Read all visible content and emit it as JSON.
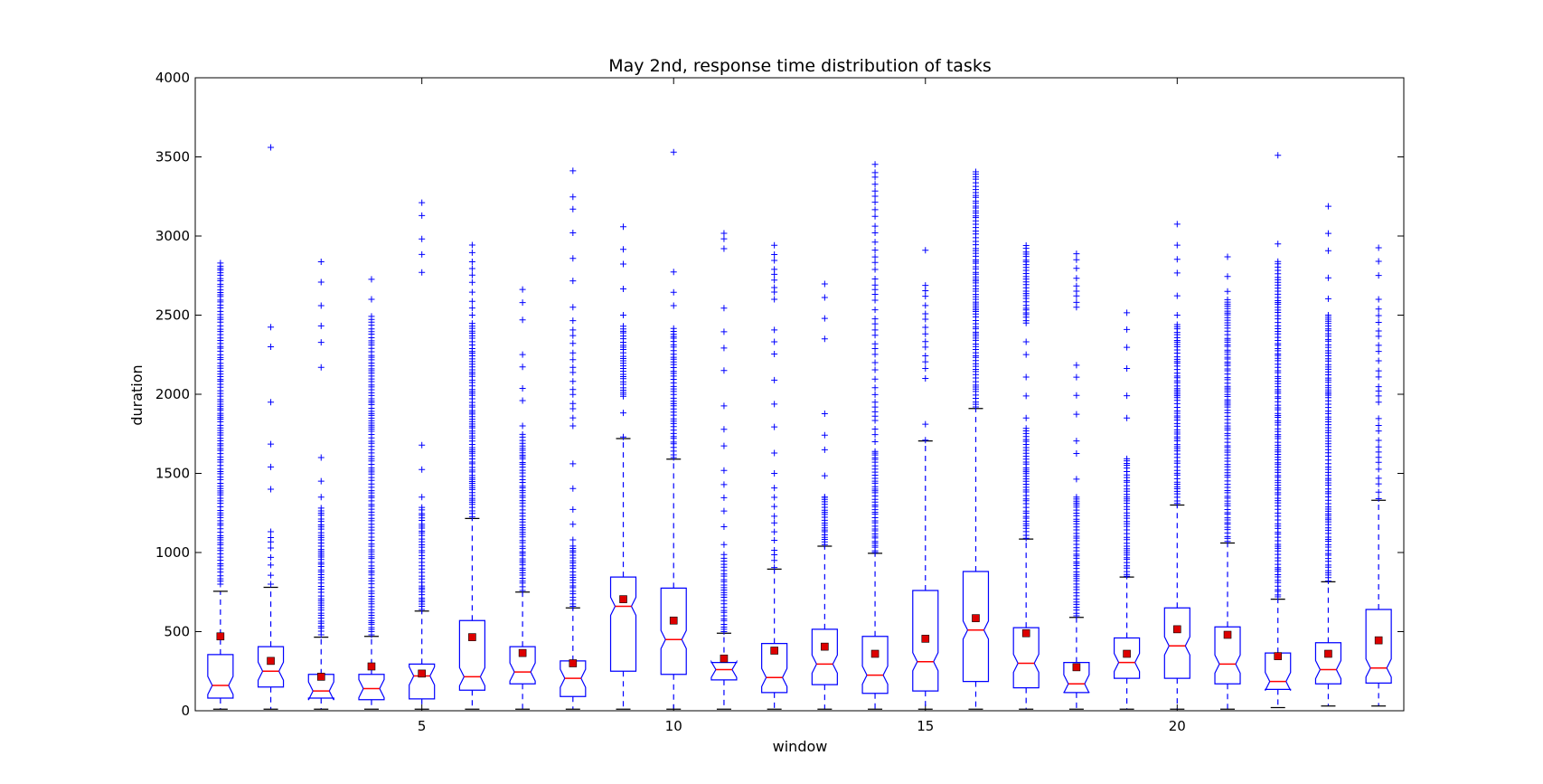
{
  "chart_data": {
    "type": "box",
    "title": "May 2nd, response time distribution of tasks",
    "xlabel": "window",
    "ylabel": "duration",
    "xlim": [
      0.5,
      24.5
    ],
    "ylim": [
      0,
      4000
    ],
    "x_ticks": [
      5,
      10,
      15,
      20
    ],
    "y_ticks": [
      0,
      500,
      1000,
      1500,
      2000,
      2500,
      3000,
      3500,
      4000
    ],
    "grid": false,
    "legend": "none",
    "colors": {
      "box": "#0000ff",
      "median": "#ff0000",
      "mean_marker": "#dd0000",
      "outlier": "#0000ff",
      "cap": "#000000"
    },
    "boxes": [
      {
        "x": 1,
        "whislo": 10,
        "q1": 80,
        "med": 160,
        "q3": 355,
        "whishi": 755,
        "mean": 470,
        "fliers": [
          [
            800,
            2850,
            "dense"
          ]
        ]
      },
      {
        "x": 2,
        "whislo": 10,
        "q1": 150,
        "med": 250,
        "q3": 405,
        "whishi": 780,
        "mean": 315,
        "fliers": [
          [
            800,
            1150,
            "medium"
          ],
          [
            1400,
            1750,
            "sparse"
          ],
          [
            1950,
            1950,
            "point"
          ],
          [
            2300,
            2550,
            "sparse"
          ],
          [
            3560,
            3560,
            "point"
          ]
        ]
      },
      {
        "x": 3,
        "whislo": 10,
        "q1": 80,
        "med": 125,
        "q3": 230,
        "whishi": 465,
        "mean": 215,
        "fliers": [
          [
            480,
            1300,
            "dense"
          ],
          [
            1350,
            1700,
            "sparse"
          ],
          [
            2170,
            2900,
            "sparse"
          ]
        ]
      },
      {
        "x": 4,
        "whislo": 10,
        "q1": 70,
        "med": 140,
        "q3": 230,
        "whishi": 470,
        "mean": 280,
        "fliers": [
          [
            480,
            2500,
            "dense"
          ],
          [
            2600,
            2850,
            "sparse"
          ]
        ]
      },
      {
        "x": 5,
        "whislo": 10,
        "q1": 75,
        "med": 220,
        "q3": 295,
        "whishi": 630,
        "mean": 235,
        "fliers": [
          [
            640,
            1300,
            "dense"
          ],
          [
            1350,
            1800,
            "sparse"
          ],
          [
            2770,
            3250,
            "sparse"
          ]
        ]
      },
      {
        "x": 6,
        "whislo": 10,
        "q1": 130,
        "med": 215,
        "q3": 570,
        "whishi": 1215,
        "mean": 465,
        "fliers": [
          [
            1225,
            2450,
            "dense"
          ],
          [
            2500,
            3000,
            "medium"
          ]
        ]
      },
      {
        "x": 7,
        "whislo": 10,
        "q1": 170,
        "med": 245,
        "q3": 405,
        "whishi": 750,
        "mean": 365,
        "fliers": [
          [
            760,
            1750,
            "dense"
          ],
          [
            1800,
            2300,
            "sparse"
          ],
          [
            2470,
            2690,
            "sparse"
          ]
        ]
      },
      {
        "x": 8,
        "whislo": 10,
        "q1": 90,
        "med": 205,
        "q3": 315,
        "whishi": 650,
        "mean": 300,
        "fliers": [
          [
            660,
            1050,
            "dense"
          ],
          [
            1080,
            1600,
            "sparse"
          ],
          [
            1800,
            2500,
            "medium"
          ],
          [
            2550,
            3580,
            "sparse"
          ]
        ]
      },
      {
        "x": 9,
        "whislo": 10,
        "q1": 250,
        "med": 660,
        "q3": 845,
        "whishi": 1720,
        "mean": 705,
        "fliers": [
          [
            1730,
            2000,
            "sparse"
          ],
          [
            2000,
            2450,
            "dense"
          ],
          [
            2500,
            3060,
            "sparse"
          ]
        ]
      },
      {
        "x": 10,
        "whislo": 10,
        "q1": 230,
        "med": 450,
        "q3": 775,
        "whishi": 1590,
        "mean": 570,
        "fliers": [
          [
            1600,
            2430,
            "dense"
          ],
          [
            2560,
            2860,
            "sparse"
          ],
          [
            3530,
            3530,
            "point"
          ]
        ]
      },
      {
        "x": 11,
        "whislo": 10,
        "q1": 195,
        "med": 260,
        "q3": 305,
        "whishi": 490,
        "mean": 330,
        "fliers": [
          [
            500,
            1000,
            "dense"
          ],
          [
            1050,
            2000,
            "sparse"
          ],
          [
            2150,
            2550,
            "sparse"
          ],
          [
            2920,
            3060,
            "medium"
          ]
        ]
      },
      {
        "x": 12,
        "whislo": 10,
        "q1": 115,
        "med": 210,
        "q3": 425,
        "whishi": 895,
        "mean": 380,
        "fliers": [
          [
            905,
            1450,
            "medium"
          ],
          [
            1500,
            2500,
            "sparse"
          ],
          [
            2600,
            2950,
            "medium"
          ]
        ]
      },
      {
        "x": 13,
        "whislo": 10,
        "q1": 165,
        "med": 295,
        "q3": 515,
        "whishi": 1040,
        "mean": 405,
        "fliers": [
          [
            1050,
            1350,
            "dense"
          ],
          [
            1350,
            1950,
            "sparse"
          ],
          [
            2350,
            2780,
            "sparse"
          ]
        ]
      },
      {
        "x": 14,
        "whislo": 10,
        "q1": 110,
        "med": 225,
        "q3": 470,
        "whishi": 995,
        "mean": 360,
        "fliers": [
          [
            1000,
            1650,
            "dense"
          ],
          [
            1700,
            3500,
            "medium"
          ]
        ]
      },
      {
        "x": 15,
        "whislo": 10,
        "q1": 125,
        "med": 310,
        "q3": 760,
        "whishi": 1705,
        "mean": 455,
        "fliers": [
          [
            1710,
            1920,
            "sparse"
          ],
          [
            2100,
            2700,
            "medium"
          ],
          [
            2910,
            2910,
            "point"
          ]
        ]
      },
      {
        "x": 16,
        "whislo": 10,
        "q1": 185,
        "med": 510,
        "q3": 880,
        "whishi": 1910,
        "mean": 585,
        "fliers": [
          [
            1920,
            3420,
            "dense"
          ]
        ]
      },
      {
        "x": 17,
        "whislo": 10,
        "q1": 145,
        "med": 300,
        "q3": 525,
        "whishi": 1085,
        "mean": 490,
        "fliers": [
          [
            1090,
            1800,
            "dense"
          ],
          [
            1850,
            2400,
            "sparse"
          ],
          [
            2450,
            2950,
            "dense"
          ]
        ]
      },
      {
        "x": 18,
        "whislo": 10,
        "q1": 115,
        "med": 170,
        "q3": 305,
        "whishi": 590,
        "mean": 275,
        "fliers": [
          [
            600,
            1350,
            "dense"
          ],
          [
            1350,
            2300,
            "sparse"
          ],
          [
            2550,
            2900,
            "medium"
          ]
        ]
      },
      {
        "x": 19,
        "whislo": 10,
        "q1": 205,
        "med": 305,
        "q3": 460,
        "whishi": 845,
        "mean": 360,
        "fliers": [
          [
            850,
            1600,
            "dense"
          ],
          [
            1850,
            2550,
            "sparse"
          ]
        ]
      },
      {
        "x": 20,
        "whislo": 10,
        "q1": 205,
        "med": 410,
        "q3": 650,
        "whishi": 1300,
        "mean": 515,
        "fliers": [
          [
            1310,
            2450,
            "dense"
          ],
          [
            2500,
            3150,
            "sparse"
          ]
        ]
      },
      {
        "x": 21,
        "whislo": 10,
        "q1": 170,
        "med": 295,
        "q3": 530,
        "whishi": 1060,
        "mean": 480,
        "fliers": [
          [
            1070,
            2600,
            "dense"
          ],
          [
            2650,
            2950,
            "sparse"
          ]
        ]
      },
      {
        "x": 22,
        "whislo": 20,
        "q1": 135,
        "med": 185,
        "q3": 365,
        "whishi": 705,
        "mean": 345,
        "fliers": [
          [
            720,
            2850,
            "dense"
          ],
          [
            2950,
            3100,
            "sparse"
          ],
          [
            3510,
            3510,
            "point"
          ]
        ]
      },
      {
        "x": 23,
        "whislo": 30,
        "q1": 170,
        "med": 260,
        "q3": 430,
        "whishi": 815,
        "mean": 360,
        "fliers": [
          [
            820,
            2500,
            "dense"
          ],
          [
            2500,
            3250,
            "sparse"
          ]
        ]
      },
      {
        "x": 24,
        "whislo": 30,
        "q1": 175,
        "med": 270,
        "q3": 640,
        "whishi": 1330,
        "mean": 445,
        "fliers": [
          [
            1340,
            1900,
            "medium"
          ],
          [
            1950,
            2550,
            "medium"
          ],
          [
            2600,
            2950,
            "sparse"
          ]
        ]
      }
    ]
  }
}
